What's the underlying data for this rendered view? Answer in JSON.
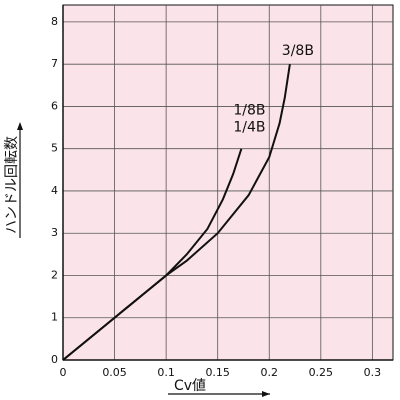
{
  "chart_data": {
    "type": "line",
    "x_label": "Cv値",
    "y_label": "ハンドル回転数",
    "xlim": [
      0,
      0.32
    ],
    "ylim": [
      0,
      8.4
    ],
    "xticks": [
      0,
      0.05,
      0.1,
      0.15,
      0.2,
      0.25,
      0.3
    ],
    "yticks": [
      0,
      1,
      2,
      3,
      4,
      5,
      6,
      7,
      8
    ],
    "grid": true,
    "background": "#fbe3ea",
    "grid_color": "#555555",
    "series": [
      {
        "name": [
          "1/8B",
          "1/4B"
        ],
        "color": "#111111",
        "x": [
          0,
          0.02,
          0.05,
          0.08,
          0.1,
          0.12,
          0.14,
          0.155,
          0.165,
          0.173
        ],
        "values": [
          0,
          0.4,
          1.0,
          1.6,
          2.0,
          2.5,
          3.1,
          3.8,
          4.4,
          5.0
        ]
      },
      {
        "name": "3/8B",
        "color": "#111111",
        "x": [
          0,
          0.02,
          0.05,
          0.08,
          0.1,
          0.12,
          0.15,
          0.18,
          0.2,
          0.21,
          0.215,
          0.22
        ],
        "values": [
          0,
          0.4,
          1.0,
          1.6,
          2.0,
          2.35,
          3.0,
          3.9,
          4.8,
          5.6,
          6.2,
          7.0
        ]
      }
    ]
  }
}
